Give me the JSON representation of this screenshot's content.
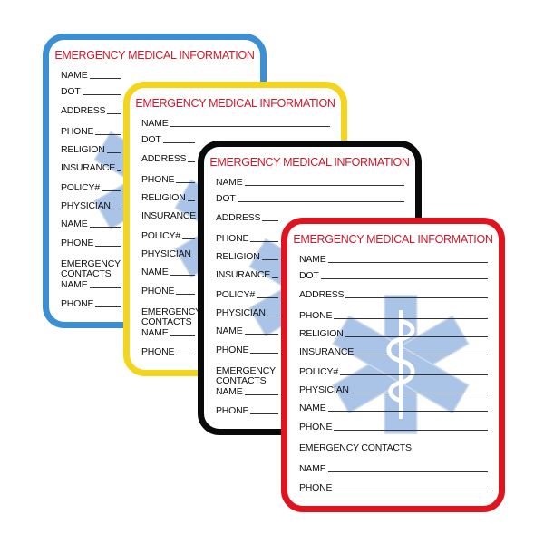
{
  "card_title": "EMERGENCY MEDICAL INFORMATION",
  "title_color": "#d0182a",
  "fields": [
    "NAME",
    "DOT",
    "ADDRESS",
    "PHONE",
    "RELIGION",
    "INSURANCE",
    "POLICY#",
    "PHYSICIAN",
    "NAME",
    "PHONE",
    "EMERGENCY CONTACTS",
    "NAME",
    "PHONE"
  ],
  "heading_field": "EMERGENCY CONTACTS",
  "cards": [
    {
      "name": "blue",
      "border_color": "#3b8fd4"
    },
    {
      "name": "yellow",
      "border_color": "#f2d51c"
    },
    {
      "name": "black",
      "border_color": "#0a0a0a"
    },
    {
      "name": "red",
      "border_color": "#e0141e"
    }
  ],
  "star_icon": "star-of-life-icon",
  "star_color": "#a9c4e6"
}
